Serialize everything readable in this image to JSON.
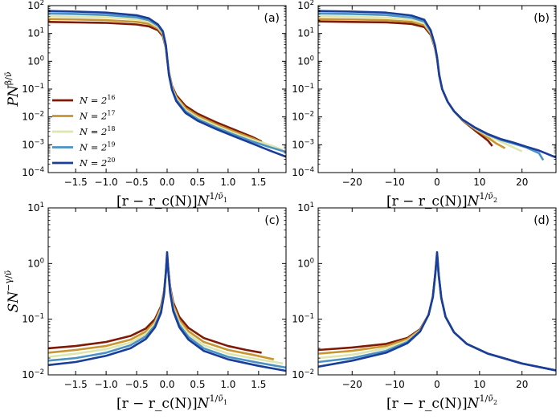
{
  "figure": {
    "ylabel_top": "PN^{β/ν̄}",
    "ylabel_bottom": "SN^{−γ/ν̄}",
    "xlabel_nu1": "[r − r_c(N)]N^{1/ν̄_1}",
    "xlabel_nu2": "[r − r_c(N)]N^{1/ν̄_2}"
  },
  "legend": {
    "placement": "left-center of panel (a)",
    "entries": [
      {
        "label": "N = 2",
        "exp": "16",
        "color": "#7f1a06"
      },
      {
        "label": "N = 2",
        "exp": "17",
        "color": "#c9952e"
      },
      {
        "label": "N = 2",
        "exp": "18",
        "color": "#dde6ad"
      },
      {
        "label": "N = 2",
        "exp": "19",
        "color": "#4a92c4"
      },
      {
        "label": "N = 2",
        "exp": "20",
        "color": "#1a3d9a"
      }
    ]
  },
  "chart_data": [
    {
      "id": "a",
      "label": "(a)",
      "type": "line",
      "yscale": "log",
      "xlim": [
        -1.95,
        1.95
      ],
      "ylim": [
        0.0001,
        100
      ],
      "xticks": [
        -1.5,
        -1.0,
        -0.5,
        0.0,
        0.5,
        1.0,
        1.5
      ],
      "xticklabels": [
        "−1.5",
        "−1.0",
        "−0.5",
        "0.0",
        "0.5",
        "1.0",
        "1.5"
      ],
      "yticks": [
        0.0001,
        0.001,
        0.01,
        0.1,
        1,
        10,
        100
      ],
      "yticklabels": [
        [
          "10",
          "−4"
        ],
        [
          "10",
          "−3"
        ],
        [
          "10",
          "−2"
        ],
        [
          "10",
          "−1"
        ],
        [
          "10",
          "0"
        ],
        [
          "10",
          "1"
        ],
        [
          "10",
          "2"
        ]
      ],
      "ylabel_key": "ylabel_top",
      "xlabel_key": "xlabel_nu1",
      "series": [
        {
          "name": "N=2^16",
          "x": [
            -1.95,
            -1.5,
            -1.0,
            -0.5,
            -0.3,
            -0.15,
            -0.07,
            -0.02,
            0.0,
            0.03,
            0.08,
            0.15,
            0.3,
            0.5,
            0.8,
            1.1,
            1.4,
            1.55
          ],
          "y": [
            26,
            25,
            24,
            21,
            18,
            13,
            8,
            3,
            1.2,
            0.4,
            0.13,
            0.06,
            0.025,
            0.013,
            0.0065,
            0.0035,
            0.0019,
            0.0013
          ]
        },
        {
          "name": "N=2^17",
          "x": [
            -1.95,
            -1.5,
            -1.0,
            -0.5,
            -0.3,
            -0.15,
            -0.07,
            -0.02,
            0.0,
            0.03,
            0.08,
            0.15,
            0.3,
            0.5,
            0.8,
            1.1,
            1.4,
            1.6,
            1.75
          ],
          "y": [
            33,
            32,
            30,
            26,
            22,
            15,
            9,
            3.2,
            1.25,
            0.38,
            0.12,
            0.052,
            0.021,
            0.011,
            0.0055,
            0.003,
            0.0017,
            0.0011,
            0.0008
          ]
        },
        {
          "name": "N=2^18",
          "x": [
            -1.95,
            -1.5,
            -1.0,
            -0.5,
            -0.3,
            -0.15,
            -0.07,
            -0.02,
            0.0,
            0.03,
            0.08,
            0.15,
            0.3,
            0.5,
            0.8,
            1.1,
            1.4,
            1.7,
            1.9
          ],
          "y": [
            42,
            40,
            38,
            32,
            26,
            17,
            10,
            3.4,
            1.3,
            0.36,
            0.11,
            0.046,
            0.018,
            0.0095,
            0.0048,
            0.0026,
            0.0015,
            0.00095,
            0.00065
          ]
        },
        {
          "name": "N=2^19",
          "x": [
            -1.95,
            -1.5,
            -1.0,
            -0.5,
            -0.3,
            -0.15,
            -0.07,
            -0.02,
            0.0,
            0.03,
            0.08,
            0.15,
            0.3,
            0.5,
            0.8,
            1.1,
            1.4,
            1.7,
            1.95
          ],
          "y": [
            52,
            50,
            46,
            38,
            30,
            19,
            11,
            3.6,
            1.35,
            0.34,
            0.1,
            0.041,
            0.016,
            0.0083,
            0.0042,
            0.0023,
            0.0013,
            0.0008,
            0.00055
          ]
        },
        {
          "name": "N=2^20",
          "x": [
            -1.95,
            -1.5,
            -1.0,
            -0.5,
            -0.3,
            -0.15,
            -0.07,
            -0.02,
            0.0,
            0.03,
            0.08,
            0.15,
            0.3,
            0.5,
            0.8,
            1.1,
            1.4,
            1.7,
            1.95
          ],
          "y": [
            64,
            61,
            56,
            45,
            35,
            21,
            12,
            3.8,
            1.4,
            0.32,
            0.095,
            0.037,
            0.014,
            0.0073,
            0.0037,
            0.002,
            0.0011,
            0.0006,
            0.00037
          ]
        }
      ]
    },
    {
      "id": "b",
      "label": "(b)",
      "type": "line",
      "yscale": "log",
      "xlim": [
        -28,
        28
      ],
      "ylim": [
        0.0001,
        100
      ],
      "xticks": [
        -20,
        -10,
        0,
        10,
        20
      ],
      "xticklabels": [
        "−20",
        "−10",
        "0",
        "10",
        "20"
      ],
      "yticks": [
        0.0001,
        0.001,
        0.01,
        0.1,
        1,
        10,
        100
      ],
      "yticklabels": [
        [
          "10",
          "−4"
        ],
        [
          "10",
          "−3"
        ],
        [
          "10",
          "−2"
        ],
        [
          "10",
          "−1"
        ],
        [
          "10",
          "0"
        ],
        [
          "10",
          "1"
        ],
        [
          "10",
          "2"
        ]
      ],
      "ylabel_key": null,
      "xlabel_key": "xlabel_nu2",
      "series": [
        {
          "name": "N=2^16",
          "x": [
            -28,
            -20,
            -12,
            -6,
            -3,
            -1.5,
            -0.5,
            0,
            0.5,
            1.2,
            2.5,
            4,
            6,
            9,
            12,
            13
          ],
          "y": [
            27,
            26,
            25,
            22,
            17,
            9,
            3,
            1.2,
            0.35,
            0.1,
            0.035,
            0.016,
            0.0075,
            0.0032,
            0.0014,
            0.0009
          ]
        },
        {
          "name": "N=2^17",
          "x": [
            -28,
            -20,
            -12,
            -6,
            -3,
            -1.5,
            -0.5,
            0,
            0.5,
            1.2,
            2.5,
            4,
            6,
            9,
            12,
            14,
            16
          ],
          "y": [
            33,
            32,
            30,
            26,
            20,
            10,
            3.2,
            1.25,
            0.34,
            0.1,
            0.035,
            0.016,
            0.0077,
            0.0036,
            0.0018,
            0.0011,
            0.00075
          ]
        },
        {
          "name": "N=2^18",
          "x": [
            -28,
            -20,
            -12,
            -6,
            -3,
            -1.5,
            -0.5,
            0,
            0.5,
            1.2,
            2.5,
            4,
            6,
            9,
            12,
            15,
            18,
            20
          ],
          "y": [
            42,
            40,
            37,
            31,
            23,
            11,
            3.4,
            1.3,
            0.33,
            0.1,
            0.035,
            0.016,
            0.0078,
            0.0038,
            0.0021,
            0.0013,
            0.0008,
            0.00058
          ]
        },
        {
          "name": "N=2^19",
          "x": [
            -28,
            -20,
            -12,
            -6,
            -3,
            -1.5,
            -0.5,
            0,
            0.5,
            1.2,
            2.5,
            4,
            6,
            9,
            12,
            15,
            18,
            21,
            24,
            25
          ],
          "y": [
            52,
            50,
            46,
            37,
            27,
            12,
            3.6,
            1.35,
            0.32,
            0.1,
            0.035,
            0.016,
            0.0079,
            0.004,
            0.0023,
            0.0015,
            0.0011,
            0.0008,
            0.0005,
            0.00028
          ]
        },
        {
          "name": "N=2^20",
          "x": [
            -28,
            -20,
            -12,
            -6,
            -3,
            -1.5,
            -0.5,
            0,
            0.5,
            1.2,
            2.5,
            4,
            6,
            9,
            12,
            15,
            18,
            21,
            24,
            28
          ],
          "y": [
            64,
            61,
            56,
            44,
            31,
            13,
            3.8,
            1.4,
            0.31,
            0.1,
            0.035,
            0.016,
            0.008,
            0.0041,
            0.0024,
            0.0016,
            0.0012,
            0.00085,
            0.00062,
            0.00035
          ]
        }
      ]
    },
    {
      "id": "c",
      "label": "(c)",
      "type": "line",
      "yscale": "log",
      "xlim": [
        -1.95,
        1.95
      ],
      "ylim": [
        0.01,
        10
      ],
      "xticks": [
        -1.5,
        -1.0,
        -0.5,
        0.0,
        0.5,
        1.0,
        1.5
      ],
      "xticklabels": [
        "−1.5",
        "−1.0",
        "−0.5",
        "0.0",
        "0.5",
        "1.0",
        "1.5"
      ],
      "yticks": [
        0.01,
        0.1,
        1,
        10
      ],
      "yticklabels": [
        [
          "10",
          "−2"
        ],
        [
          "10",
          "−1"
        ],
        [
          "10",
          "0"
        ],
        [
          "10",
          "1"
        ]
      ],
      "ylabel_key": "ylabel_bottom",
      "xlabel_key": "xlabel_nu1",
      "series": [
        {
          "name": "N=2^16",
          "x": [
            -1.95,
            -1.5,
            -1.0,
            -0.6,
            -0.35,
            -0.2,
            -0.1,
            -0.05,
            -0.02,
            0.0,
            0.02,
            0.05,
            0.1,
            0.2,
            0.35,
            0.6,
            1.0,
            1.3,
            1.55
          ],
          "y": [
            0.03,
            0.033,
            0.039,
            0.05,
            0.068,
            0.1,
            0.17,
            0.32,
            0.7,
            1.3,
            0.8,
            0.38,
            0.2,
            0.11,
            0.07,
            0.046,
            0.033,
            0.028,
            0.025
          ]
        },
        {
          "name": "N=2^17",
          "x": [
            -1.95,
            -1.5,
            -1.0,
            -0.6,
            -0.35,
            -0.2,
            -0.1,
            -0.05,
            -0.02,
            0.0,
            0.02,
            0.05,
            0.1,
            0.2,
            0.35,
            0.6,
            1.0,
            1.4,
            1.75
          ],
          "y": [
            0.025,
            0.028,
            0.033,
            0.043,
            0.06,
            0.09,
            0.16,
            0.31,
            0.7,
            1.4,
            0.78,
            0.36,
            0.18,
            0.096,
            0.061,
            0.039,
            0.028,
            0.023,
            0.019
          ]
        },
        {
          "name": "N=2^18",
          "x": [
            -1.95,
            -1.5,
            -1.0,
            -0.6,
            -0.35,
            -0.2,
            -0.1,
            -0.05,
            -0.02,
            0.0,
            0.02,
            0.05,
            0.1,
            0.2,
            0.35,
            0.6,
            1.0,
            1.5,
            1.9
          ],
          "y": [
            0.021,
            0.024,
            0.029,
            0.038,
            0.054,
            0.083,
            0.15,
            0.3,
            0.7,
            1.45,
            0.76,
            0.34,
            0.16,
            0.087,
            0.054,
            0.034,
            0.024,
            0.019,
            0.016
          ]
        },
        {
          "name": "N=2^19",
          "x": [
            -1.95,
            -1.5,
            -1.0,
            -0.6,
            -0.35,
            -0.2,
            -0.1,
            -0.05,
            -0.02,
            0.0,
            0.02,
            0.05,
            0.1,
            0.2,
            0.35,
            0.6,
            1.0,
            1.5,
            1.95
          ],
          "y": [
            0.018,
            0.02,
            0.025,
            0.034,
            0.049,
            0.077,
            0.14,
            0.29,
            0.7,
            1.5,
            0.74,
            0.32,
            0.15,
            0.079,
            0.048,
            0.03,
            0.021,
            0.0165,
            0.0135
          ]
        },
        {
          "name": "N=2^20",
          "x": [
            -1.95,
            -1.5,
            -1.0,
            -0.6,
            -0.35,
            -0.2,
            -0.1,
            -0.05,
            -0.02,
            0.0,
            0.02,
            0.05,
            0.1,
            0.2,
            0.35,
            0.6,
            1.0,
            1.5,
            1.95
          ],
          "y": [
            0.015,
            0.017,
            0.022,
            0.03,
            0.044,
            0.071,
            0.13,
            0.28,
            0.7,
            1.6,
            0.72,
            0.3,
            0.14,
            0.072,
            0.043,
            0.027,
            0.019,
            0.0145,
            0.0118
          ]
        }
      ]
    },
    {
      "id": "d",
      "label": "(d)",
      "type": "line",
      "yscale": "log",
      "xlim": [
        -28,
        28
      ],
      "ylim": [
        0.01,
        10
      ],
      "xticks": [
        -20,
        -10,
        0,
        10,
        20
      ],
      "xticklabels": [
        "−20",
        "−10",
        "0",
        "10",
        "20"
      ],
      "yticks": [
        0.01,
        0.1,
        1,
        10
      ],
      "yticklabels": [
        [
          "10",
          "−2"
        ],
        [
          "10",
          "−1"
        ],
        [
          "10",
          "0"
        ],
        [
          "10",
          "1"
        ]
      ],
      "ylabel_key": null,
      "xlabel_key": "xlabel_nu2",
      "series": [
        {
          "name": "N=2^16",
          "x": [
            -28,
            -20,
            -12,
            -7,
            -4,
            -2,
            -1,
            -0.4,
            0,
            0.4,
            1,
            2,
            4,
            7,
            12,
            20,
            28
          ],
          "y": [
            0.028,
            0.031,
            0.036,
            0.046,
            0.066,
            0.12,
            0.25,
            0.65,
            1.3,
            0.6,
            0.24,
            0.11,
            0.058,
            0.036,
            0.024,
            0.016,
            0.012
          ]
        },
        {
          "name": "N=2^17",
          "x": [
            -28,
            -20,
            -12,
            -7,
            -4,
            -2,
            -1,
            -0.4,
            0,
            0.4,
            1,
            2,
            4,
            7,
            12,
            20,
            28
          ],
          "y": [
            0.024,
            0.027,
            0.033,
            0.044,
            0.064,
            0.12,
            0.25,
            0.66,
            1.4,
            0.6,
            0.24,
            0.11,
            0.058,
            0.036,
            0.024,
            0.016,
            0.012
          ]
        },
        {
          "name": "N=2^18",
          "x": [
            -28,
            -20,
            -12,
            -7,
            -4,
            -2,
            -1,
            -0.4,
            0,
            0.4,
            1,
            2,
            4,
            7,
            12,
            20,
            28
          ],
          "y": [
            0.02,
            0.023,
            0.03,
            0.041,
            0.062,
            0.12,
            0.25,
            0.67,
            1.45,
            0.61,
            0.24,
            0.11,
            0.058,
            0.036,
            0.024,
            0.016,
            0.012
          ]
        },
        {
          "name": "N=2^19",
          "x": [
            -28,
            -20,
            -12,
            -7,
            -4,
            -2,
            -1,
            -0.4,
            0,
            0.4,
            1,
            2,
            4,
            7,
            12,
            20,
            28
          ],
          "y": [
            0.017,
            0.02,
            0.027,
            0.039,
            0.061,
            0.12,
            0.25,
            0.68,
            1.5,
            0.61,
            0.24,
            0.11,
            0.058,
            0.036,
            0.024,
            0.016,
            0.012
          ]
        },
        {
          "name": "N=2^20",
          "x": [
            -28,
            -20,
            -12,
            -7,
            -4,
            -2,
            -1,
            -0.4,
            0,
            0.4,
            1,
            2,
            4,
            7,
            12,
            20,
            28
          ],
          "y": [
            0.014,
            0.018,
            0.025,
            0.037,
            0.06,
            0.12,
            0.25,
            0.69,
            1.6,
            0.62,
            0.24,
            0.11,
            0.058,
            0.036,
            0.024,
            0.016,
            0.012
          ]
        }
      ]
    }
  ]
}
